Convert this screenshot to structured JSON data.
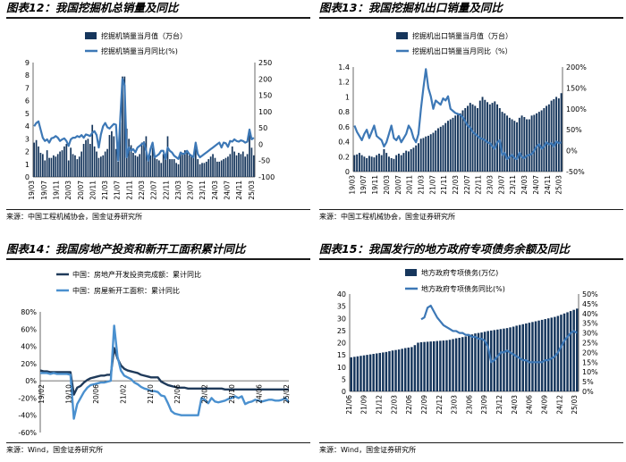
{
  "colors": {
    "navy": "#16365c",
    "blue": "#3d78b6",
    "dark": "#1f3a5a",
    "light": "#4a90cf",
    "axis": "#444444"
  },
  "panels": [
    {
      "title": "图表12：我国挖掘机总销量及同比",
      "source": "来源：中国工程机械协会，国金证券研究所",
      "chart_data": {
        "type": "bar+line",
        "series": [
          {
            "name": "挖掘机销量当月值（万台）",
            "axis": "left",
            "kind": "bar",
            "values": [
              2.7,
              2.9,
              2.4,
              1.9,
              1.8,
              1.3,
              2.1,
              1.5,
              1.5,
              1.7,
              1.6,
              1.8,
              2.0,
              2.1,
              2.4,
              2.6,
              1.3,
              2.3,
              1.8,
              1.7,
              1.4,
              1.6,
              2.0,
              2.6,
              2.9,
              3.0,
              2.6,
              4.1,
              2.4,
              2.0,
              1.5,
              1.6,
              1.7,
              2.0,
              2.2,
              3.3,
              3.6,
              3.2,
              2.2,
              1.2,
              4.3,
              7.9,
              7.9,
              3.8,
              3.0,
              2.5,
              1.9,
              1.7,
              1.6,
              1.8,
              2.7,
              2.8,
              3.2,
              1.6,
              1.7,
              2.3,
              1.5,
              1.4,
              1.3,
              1.1,
              1.8,
              1.8,
              3.2,
              1.4,
              1.4,
              1.4,
              1.1,
              1.0,
              1.8,
              1.9,
              2.1,
              1.9,
              1.7,
              1.6,
              1.5,
              2.6,
              1.4,
              1.0,
              1.1,
              1.1,
              1.2,
              1.4,
              1.6,
              1.8,
              1.5,
              1.2,
              1.2,
              1.3,
              1.4,
              1.5,
              1.6,
              1.8,
              2.4,
              2.0,
              1.7,
              1.9,
              1.8,
              2.0,
              1.6,
              1.8,
              3.3,
              2.3,
              1.7
            ]
          },
          {
            "name": "挖掘机销量当月同比(%)",
            "axis": "right",
            "kind": "line",
            "values": [
              55,
              65,
              70,
              45,
              20,
              10,
              15,
              5,
              18,
              20,
              25,
              20,
              10,
              15,
              18,
              10,
              -5,
              15,
              20,
              20,
              25,
              22,
              28,
              20,
              30,
              28,
              25,
              35,
              40,
              28,
              -10,
              30,
              55,
              65,
              52,
              48,
              55,
              62,
              60,
              -50,
              80,
              200,
              180,
              -40,
              -10,
              -20,
              -15,
              -25,
              -10,
              -5,
              0,
              5,
              -20,
              -50,
              -15,
              5,
              -40,
              -35,
              -30,
              -20,
              -20,
              -45,
              -10,
              -20,
              -25,
              -35,
              -40,
              -45,
              -25,
              -30,
              -28,
              -20,
              -30,
              -35,
              -40,
              5,
              -30,
              -40,
              -35,
              -30,
              -25,
              -20,
              -15,
              -10,
              -5,
              0,
              5,
              -10,
              5,
              3,
              -8,
              10,
              8,
              15,
              10,
              8,
              12,
              10,
              5,
              8,
              45,
              15,
              20
            ]
          }
        ],
        "xticks": [
          "19/03",
          "19/07",
          "19/11",
          "20/03",
          "20/07",
          "20/11",
          "21/03",
          "21/07",
          "21/11",
          "22/03",
          "22/07",
          "22/11",
          "23/03",
          "23/07",
          "23/11",
          "24/03",
          "24/07",
          "24/11",
          "25/03"
        ],
        "yleft_ticks": [
          "0",
          "1",
          "2",
          "3",
          "4",
          "5",
          "6",
          "7",
          "8",
          "9"
        ],
        "ylim_left": [
          0,
          9
        ],
        "yright_ticks": [
          "-100",
          "-50",
          "0",
          "50",
          "100",
          "150",
          "200",
          "250"
        ],
        "ylim_right": [
          -100,
          250
        ],
        "legend": [
          "挖掘机销量当月值（万台）",
          "挖掘机销量当月同比(%)"
        ]
      }
    },
    {
      "title": "图表13：我国挖掘机出口销量及同比",
      "source": "来源：中国工程机械协会，国金证券研究所",
      "chart_data": {
        "type": "bar+line",
        "series": [
          {
            "name": "挖掘机出口销量当月值（万台）",
            "axis": "left",
            "kind": "bar",
            "values": [
              0.22,
              0.23,
              0.25,
              0.22,
              0.2,
              0.18,
              0.21,
              0.2,
              0.19,
              0.22,
              0.24,
              0.22,
              0.3,
              0.25,
              0.2,
              0.18,
              0.17,
              0.22,
              0.24,
              0.22,
              0.25,
              0.28,
              0.27,
              0.3,
              0.32,
              0.35,
              0.38,
              0.44,
              0.45,
              0.47,
              0.48,
              0.5,
              0.52,
              0.55,
              0.58,
              0.6,
              0.62,
              0.65,
              0.68,
              0.7,
              0.72,
              0.75,
              0.76,
              0.78,
              0.82,
              0.85,
              0.88,
              0.92,
              0.9,
              0.88,
              0.85,
              0.95,
              1.0,
              0.96,
              0.93,
              0.9,
              0.92,
              0.94,
              0.9,
              0.85,
              0.8,
              0.78,
              0.75,
              0.72,
              0.7,
              0.68,
              0.66,
              0.72,
              0.75,
              0.73,
              0.7,
              0.7,
              0.75,
              0.76,
              0.78,
              0.8,
              0.82,
              0.85,
              0.88,
              0.9,
              0.95,
              0.97,
              1.0,
              0.98,
              1.05
            ]
          },
          {
            "name": "挖掘机出口销量当月同比（%）",
            "axis": "right",
            "kind": "line",
            "values": [
              60,
              45,
              35,
              25,
              40,
              50,
              30,
              45,
              60,
              35,
              30,
              25,
              10,
              20,
              40,
              60,
              30,
              25,
              35,
              20,
              30,
              40,
              60,
              50,
              30,
              20,
              40,
              100,
              150,
              195,
              150,
              130,
              100,
              120,
              115,
              110,
              125,
              120,
              130,
              100,
              95,
              90,
              88,
              85,
              80,
              70,
              60,
              55,
              45,
              40,
              35,
              30,
              28,
              25,
              20,
              18,
              10,
              5,
              20,
              25,
              -10,
              -5,
              -20,
              -15,
              -10,
              -18,
              -20,
              -5,
              -15,
              -18,
              -12,
              -10,
              -8,
              0,
              10,
              15,
              5,
              10,
              20,
              15,
              18,
              10,
              22,
              18,
              20
            ]
          }
        ],
        "xticks": [
          "19/03",
          "19/07",
          "19/11",
          "20/03",
          "20/07",
          "20/11",
          "21/03",
          "21/07",
          "21/11",
          "22/03",
          "22/07",
          "22/11",
          "23/03",
          "23/07",
          "23/11",
          "24/03",
          "24/07",
          "24/11",
          "25/03"
        ],
        "yleft_ticks": [
          "0",
          "0.2",
          "0.4",
          "0.6",
          "0.8",
          "1",
          "1.2",
          "1.4"
        ],
        "ylim_left": [
          0,
          1.4
        ],
        "yright_ticks": [
          "-50%",
          "0%",
          "50%",
          "100%",
          "150%",
          "200%"
        ],
        "ylim_right": [
          -50,
          200
        ],
        "legend": [
          "挖掘机出口销量当月值（万台）",
          "挖掘机出口销量当月同比（%）"
        ]
      }
    },
    {
      "title": "图表14：我国房地产投资和新开工面积累计同比",
      "source": "来源：Wind，国金证券研究所",
      "chart_data": {
        "type": "line",
        "series": [
          {
            "name": "中国：房地产开发投资完成额：累计同比",
            "values": [
              12,
              11,
              11,
              10,
              10,
              10,
              10,
              10,
              10,
              10,
              -16,
              -8,
              -6,
              -2,
              1,
              3,
              4,
              5,
              6,
              6,
              7,
              7,
              38,
              26,
              18,
              14,
              12,
              11,
              10,
              9,
              7,
              6,
              5,
              4,
              4,
              4,
              -1,
              -3,
              -5,
              -6,
              -7,
              -8,
              -8,
              -8,
              -9,
              -9,
              -9,
              -9,
              -9,
              -9,
              -9,
              -9,
              -9,
              -9,
              -9,
              -10,
              -10,
              -10,
              -10,
              -10,
              -10,
              -10,
              -10,
              -10,
              -10,
              -10,
              -10,
              -10,
              -10,
              -10,
              -10,
              -10,
              -10,
              -10,
              -10
            ]
          },
          {
            "name": "中国：房屋新开工面积：累计同比",
            "values": [
              9,
              9,
              9,
              8,
              9,
              8,
              8,
              8,
              8,
              7,
              -44,
              -27,
              -20,
              -13,
              -8,
              -5,
              -4,
              -3,
              -2,
              -2,
              -1,
              0,
              64,
              28,
              12,
              6,
              4,
              2,
              -2,
              -4,
              -7,
              -9,
              -10,
              -12,
              -12,
              -13,
              -17,
              -18,
              -26,
              -35,
              -38,
              -39,
              -40,
              -40,
              -40,
              -40,
              -40,
              -40,
              -20,
              -22,
              -26,
              -20,
              -24,
              -25,
              -24,
              -23,
              -21,
              -20,
              -18,
              -20,
              -18,
              -27,
              -25,
              -24,
              -22,
              -23,
              -24,
              -23,
              -22,
              -22,
              -23,
              -23,
              -22,
              -20,
              -25
            ]
          }
        ],
        "xticks": [
          "19/02",
          "19/10",
          "20/06",
          "21/02",
          "21/10",
          "22/06",
          "23/02",
          "23/10",
          "24/06",
          "25/02"
        ],
        "yticks": [
          "-60%",
          "-40%",
          "-20%",
          "0%",
          "20%",
          "40%",
          "60%",
          "80%"
        ],
        "ylim": [
          -60,
          80
        ],
        "legend": [
          "中国：房地产开发投资完成额：累计同比",
          "中国：房屋新开工面积：累计同比"
        ]
      }
    },
    {
      "title": "图表15：我国发行的地方政府专项债务余额及同比",
      "source": "来源：Wind，国金证券研究所",
      "chart_data": {
        "type": "bar+line",
        "series": [
          {
            "name": "地方政府专项债务（万亿）",
            "axis": "left",
            "kind": "bar",
            "values": [
              14,
              14.2,
              14.4,
              14.6,
              14.8,
              15,
              15.2,
              15.4,
              15.6,
              15.8,
              16,
              16.2,
              16.5,
              16.8,
              17,
              17.2,
              17.5,
              17.8,
              18,
              18.2,
              19,
              20,
              20.2,
              20.3,
              20.4,
              20.5,
              20.6,
              20.7,
              20.8,
              20.9,
              21,
              21.2,
              21.5,
              21.8,
              22,
              22.3,
              22.6,
              23,
              23.4,
              23.8,
              24,
              24.2,
              24.5,
              24.8,
              25,
              25.2,
              25.4,
              25.6,
              25.8,
              26,
              26.3,
              26.6,
              27,
              27.3,
              27.6,
              27.9,
              28.2,
              28.5,
              28.8,
              29.1,
              29.4,
              29.7,
              30,
              30.3,
              30.6,
              31,
              31.5,
              32,
              32.5,
              33,
              33.5,
              34
            ]
          },
          {
            "name": "地方政府专项债务同比(%)",
            "axis": "right",
            "kind": "line",
            "values": [
              null,
              null,
              null,
              null,
              null,
              null,
              null,
              null,
              null,
              null,
              null,
              null,
              null,
              null,
              null,
              null,
              null,
              null,
              null,
              null,
              null,
              null,
              37,
              38,
              43,
              44,
              41,
              38,
              36,
              34,
              33,
              32,
              31,
              31,
              30,
              30,
              29,
              29,
              28,
              28,
              27,
              27,
              26,
              23,
              15,
              16,
              18,
              20,
              20,
              21,
              20,
              19,
              18,
              17,
              16,
              16,
              15,
              15,
              15,
              15,
              15,
              16,
              16,
              17,
              18,
              20,
              23,
              26,
              28,
              30,
              31,
              30
            ]
          }
        ],
        "xticks": [
          "21/06",
          "21/09",
          "21/12",
          "22/03",
          "22/06",
          "22/09",
          "22/12",
          "23/03",
          "23/06",
          "23/09",
          "23/12",
          "24/03",
          "24/06",
          "24/09",
          "24/12",
          "25/03"
        ],
        "yleft_ticks": [
          "0",
          "5",
          "10",
          "15",
          "20",
          "25",
          "30",
          "35",
          "40"
        ],
        "ylim_left": [
          0,
          40
        ],
        "yright_ticks": [
          "0%",
          "5%",
          "10%",
          "15%",
          "20%",
          "25%",
          "30%",
          "35%",
          "40%",
          "45%",
          "50%"
        ],
        "ylim_right": [
          0,
          50
        ],
        "legend": [
          "地方政府专项债务(万亿)",
          "地方政府专项债务同比(%)"
        ]
      }
    }
  ]
}
